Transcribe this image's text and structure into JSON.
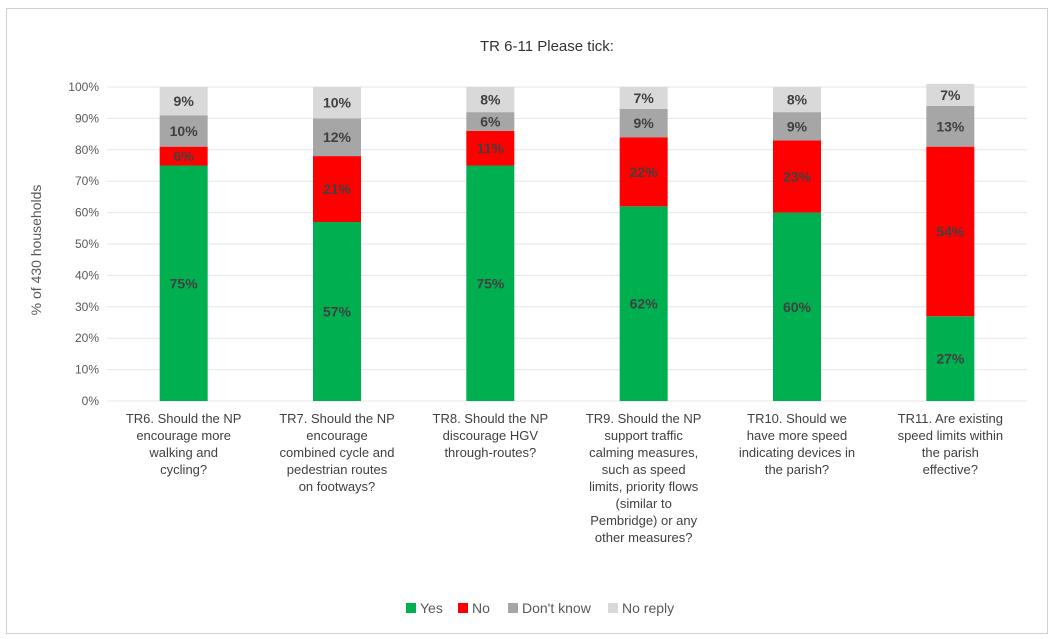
{
  "chart_data": {
    "type": "bar",
    "stacked": true,
    "title": "TR 6-11 Please tick:",
    "xlabel": "",
    "ylabel": "% of 430 households",
    "ylim": [
      0,
      100
    ],
    "yticks": [
      "0%",
      "10%",
      "20%",
      "30%",
      "40%",
      "50%",
      "60%",
      "70%",
      "80%",
      "90%",
      "100%"
    ],
    "grid": true,
    "legend_position": "bottom",
    "categories": [
      [
        "TR6. Should the NP",
        "encourage more",
        "walking and",
        "cycling?"
      ],
      [
        "TR7. Should the NP",
        "encourage",
        "combined cycle and",
        "pedestrian routes",
        "on footways?"
      ],
      [
        "TR8. Should the NP",
        "discourage HGV",
        "through-routes?"
      ],
      [
        "TR9. Should the NP",
        "support traffic",
        "calming measures,",
        "such as speed",
        "limits, priority flows",
        "(similar to",
        "Pembridge) or any",
        "other measures?"
      ],
      [
        "TR10. Should we",
        "have more speed",
        "indicating devices in",
        "the parish?"
      ],
      [
        "TR11. Are existing",
        "speed limits within",
        "the parish",
        "effective?"
      ]
    ],
    "series": [
      {
        "name": "Yes",
        "color": "#00b050",
        "values": [
          75,
          57,
          75,
          62,
          60,
          27
        ],
        "labels": [
          "75%",
          "57%",
          "75%",
          "62%",
          "60%",
          "27%"
        ]
      },
      {
        "name": "No",
        "color": "#ff0000",
        "values": [
          6,
          21,
          11,
          22,
          23,
          54
        ],
        "labels": [
          "6%",
          "21%",
          "11%",
          "22%",
          "23%",
          "54%"
        ]
      },
      {
        "name": "Don't know",
        "color": "#a6a6a6",
        "values": [
          10,
          12,
          6,
          9,
          9,
          13
        ],
        "labels": [
          "10%",
          "12%",
          "6%",
          "9%",
          "9%",
          "13%"
        ]
      },
      {
        "name": "No reply",
        "color": "#d9d9d9",
        "values": [
          9,
          10,
          8,
          7,
          8,
          7
        ],
        "labels": [
          "9%",
          "10%",
          "8%",
          "7%",
          "8%",
          "7%"
        ]
      }
    ]
  }
}
